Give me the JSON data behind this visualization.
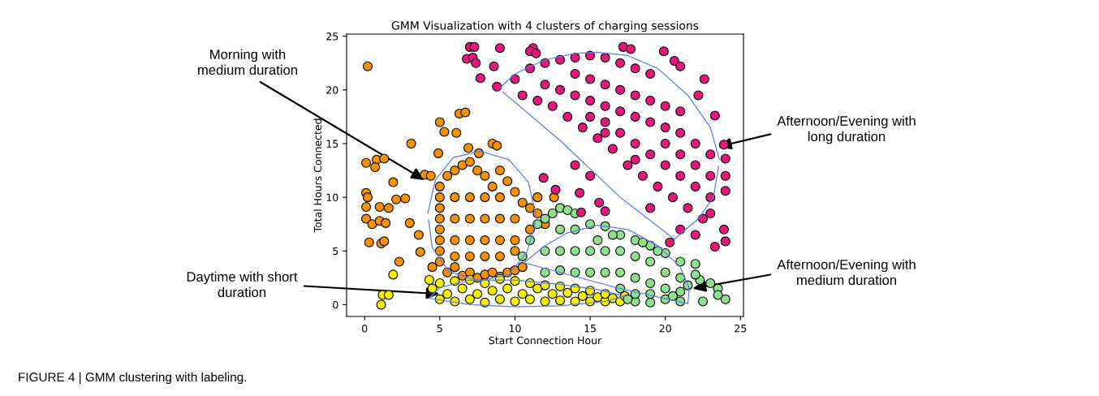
{
  "chart_data": {
    "type": "scatter",
    "title": "GMM Visualization with 4 clusters of charging sessions",
    "xlabel": "Start Connection Hour",
    "ylabel": "Total Hours Connected",
    "xlim": [
      -1.2,
      25.2
    ],
    "ylim": [
      -1.1,
      25.2
    ],
    "xticks": [
      0,
      5,
      10,
      15,
      20,
      25
    ],
    "yticks": [
      0,
      5,
      10,
      15,
      20,
      25
    ],
    "grid": false,
    "legend": false,
    "marker": "circle",
    "series": [
      {
        "color": "#f39200",
        "x": [
          0.2,
          0.1,
          0.8,
          1.3,
          0.7,
          0.1,
          0.2,
          1.9,
          0.1,
          1.0,
          1.6,
          2.7,
          2.1,
          0.1,
          0.5,
          1.0,
          1.4,
          0.3,
          1.1,
          1.3,
          3.0,
          3.6,
          3.7,
          2.3,
          3.1,
          5.0,
          5.3,
          6.1,
          6.3,
          6.7,
          4.9,
          8.5,
          8.8,
          6.9,
          7.6,
          4.0,
          4.4,
          4.5,
          5,
          5.5,
          6,
          6.5,
          7,
          7.5,
          8,
          8.5,
          9,
          9.5,
          10,
          10.5,
          11,
          11.5,
          5,
          5,
          5,
          5,
          5,
          5,
          5,
          5.5,
          6,
          6.5,
          7,
          7.5,
          8,
          8.5,
          9,
          9.5,
          10,
          10.5,
          6,
          7,
          8,
          9,
          6,
          7,
          8,
          9,
          10,
          6,
          7,
          8,
          9,
          10,
          6,
          7,
          8,
          9,
          10,
          11,
          12,
          12.6,
          11.5
        ],
        "values": [
          22.2,
          13.2,
          13.5,
          13.6,
          12.8,
          10.4,
          10.0,
          11.4,
          9.1,
          9.1,
          9.0,
          9.9,
          9.8,
          8.0,
          7.5,
          7.8,
          7.6,
          5.8,
          5.7,
          5.9,
          7.6,
          6.5,
          4.9,
          4.0,
          15.0,
          17.0,
          16.1,
          16.0,
          17.8,
          17.9,
          14.1,
          15.0,
          14.8,
          14.6,
          14.1,
          12.1,
          12.0,
          3.5,
          11,
          12,
          12.5,
          13,
          13.3,
          12.5,
          12,
          11,
          12.5,
          11.5,
          10.5,
          9.5,
          9,
          8.5,
          10,
          9,
          8,
          7,
          6,
          5,
          4,
          3,
          3.5,
          2.7,
          3,
          2.5,
          2.8,
          3,
          2.6,
          3,
          3.2,
          3.5,
          10,
          10,
          10,
          10,
          8,
          8,
          8,
          8,
          8,
          6,
          6,
          6,
          6,
          6,
          4.5,
          4.5,
          4.5,
          4.5,
          5,
          7,
          7.5,
          10,
          10
        ]
      },
      {
        "color": "#f2ee00",
        "x": [
          4.3,
          4.5,
          5,
          5,
          5.5,
          6,
          6,
          6.5,
          7,
          7,
          7.5,
          8,
          8,
          8.5,
          9,
          9,
          9.5,
          10,
          10,
          10.5,
          11,
          11,
          11.5,
          12,
          12,
          12.5,
          13,
          13,
          13.5,
          14,
          14,
          14.5,
          15,
          15,
          15.5,
          16,
          16,
          16.5,
          17,
          17.3,
          1.1,
          1.2,
          1.6,
          1.9
        ],
        "values": [
          2.3,
          1.5,
          0.5,
          2,
          1,
          0.3,
          2.2,
          1.5,
          0.5,
          2.3,
          1,
          0.2,
          2,
          1.3,
          0.5,
          2.4,
          1.5,
          0.3,
          2.2,
          1,
          0.5,
          2,
          1.5,
          0.3,
          1.8,
          1,
          0.4,
          1.7,
          1.1,
          0.3,
          1.5,
          0.8,
          0.3,
          1.3,
          0.7,
          0.3,
          1,
          0.6,
          0.3,
          0.8,
          0,
          0.9,
          0.9,
          2.8
        ]
      },
      {
        "color": "#8ee08e",
        "x": [
          10.5,
          11,
          11.5,
          12,
          12.5,
          13,
          13.5,
          14,
          13,
          14,
          15,
          16,
          17,
          18,
          19,
          20,
          21,
          22,
          22.3,
          23,
          23.5,
          24,
          23.5,
          22.5,
          21,
          20,
          19,
          18,
          17.5,
          12,
          13,
          14,
          15,
          16,
          17,
          18,
          19,
          20,
          21,
          12,
          13,
          14,
          15,
          16,
          17,
          18,
          19,
          20,
          21,
          17,
          18,
          19,
          20.5,
          21.5,
          18.5,
          16.5,
          15.5,
          19.5,
          22
        ],
        "values": [
          4.5,
          6,
          7.5,
          8,
          8.5,
          9,
          8.8,
          8.5,
          7,
          7,
          7.5,
          7.3,
          6.5,
          6,
          5.5,
          4.8,
          4,
          3.8,
          2.3,
          2,
          1.5,
          0.5,
          0.9,
          0.3,
          0.3,
          0.5,
          0.2,
          0.3,
          0.5,
          5,
          5,
          5,
          5,
          5,
          5,
          4.5,
          4,
          3,
          2.5,
          3,
          3.2,
          3,
          3,
          3,
          3,
          2.5,
          2,
          1.5,
          1.2,
          1.5,
          1,
          1,
          0.8,
          1.8,
          5.8,
          6.5,
          6,
          5,
          2.8
        ]
      },
      {
        "color": "#e6177a",
        "x": [
          7,
          7.3,
          6.8,
          7.2,
          7.4,
          7.7,
          9,
          8.6,
          8.8,
          11.2,
          11,
          11.4,
          17.2,
          17.7,
          19.9,
          20.6,
          21,
          22.6,
          23.3,
          22.2,
          11.9,
          12.7,
          14.3,
          14.4,
          15.6,
          16,
          20.3,
          23.3,
          24,
          23.9,
          24,
          24,
          24,
          23.9,
          14,
          15,
          10,
          11,
          12,
          13,
          14,
          15,
          16,
          17,
          18,
          19,
          10.5,
          11.5,
          12.5,
          13.5,
          14.5,
          15.5,
          16.5,
          17.5,
          18.5,
          19.5,
          20.5,
          21.5,
          22.5,
          12,
          13,
          14,
          15,
          16,
          17,
          18,
          19,
          20,
          21,
          22,
          23,
          14,
          15,
          16,
          17,
          18,
          19,
          20,
          21,
          15,
          16,
          17,
          18,
          19,
          20,
          21,
          22,
          23,
          23,
          22,
          20,
          21,
          19,
          21,
          22,
          23,
          16,
          18
        ],
        "values": [
          24,
          24,
          22.9,
          23,
          22.5,
          21.1,
          23.9,
          22.2,
          20.3,
          23.9,
          23.6,
          23.4,
          24,
          23.8,
          23.6,
          22.7,
          22.2,
          21,
          17.6,
          19.5,
          11.8,
          10.7,
          10.4,
          8.6,
          9.5,
          8.7,
          5.8,
          5.4,
          5.9,
          7,
          10.6,
          12,
          13.6,
          14.9,
          13,
          12,
          21,
          22,
          22.5,
          22.8,
          23,
          23.2,
          23,
          22.5,
          22,
          21.5,
          19.5,
          19,
          18.5,
          17.5,
          16.5,
          15.5,
          14.5,
          13,
          12,
          11,
          10,
          9,
          8,
          20.5,
          20,
          19.5,
          19,
          18.5,
          18,
          17.5,
          17,
          16.5,
          16,
          15,
          14,
          21.5,
          21,
          20.5,
          20,
          19.5,
          19,
          18.5,
          18,
          17.5,
          17,
          16,
          15,
          14,
          13,
          12,
          11,
          10,
          12,
          13,
          15,
          14,
          9,
          7,
          6.5,
          8.5,
          16,
          13.5
        ]
      },
      {
        "type": "line",
        "marker": "none",
        "color": "#5b7bf5",
        "x": [
          4.2,
          4.7,
          5.9,
          7.7,
          9.6,
          10.9,
          11.4
        ],
        "values": [
          8.5,
          11.6,
          13.7,
          14.3,
          13.5,
          11.4,
          8.2
        ]
      },
      {
        "type": "line",
        "marker": "none",
        "color": "#5b7bf5",
        "x": [
          4.25,
          4.5,
          5.6,
          7.6,
          9.6,
          10.8,
          11.35
        ],
        "values": [
          7.9,
          5.3,
          3.1,
          2.2,
          2.8,
          4.9,
          7.6
        ]
      },
      {
        "type": "line",
        "marker": "none",
        "color": "#5b7bf5",
        "x": [
          4.3,
          5,
          7,
          10,
          13,
          15.5,
          17.3
        ],
        "values": [
          0.6,
          1.6,
          2.3,
          2.3,
          1.9,
          1.4,
          0.8
        ]
      },
      {
        "type": "line",
        "marker": "none",
        "color": "#5b7bf5",
        "x": [
          4.3,
          7,
          10,
          13,
          16,
          17.3
        ],
        "values": [
          0.6,
          0,
          -0.2,
          -0.1,
          0.3,
          0.8
        ]
      },
      {
        "type": "line",
        "marker": "none",
        "color": "#5b7bf5",
        "x": [
          9,
          10,
          12,
          14,
          15.5,
          17.5,
          19.5,
          21.5,
          23,
          23.6
        ],
        "values": [
          20.2,
          21.5,
          22.8,
          23.4,
          23.5,
          23.2,
          22,
          19.5,
          16.5,
          13.5
        ]
      },
      {
        "type": "line",
        "marker": "none",
        "color": "#5b7bf5",
        "x": [
          9.2,
          13,
          17,
          20.6,
          22.2,
          23.2,
          23.55
        ],
        "values": [
          19.8,
          15.3,
          10,
          6.1,
          8,
          10,
          12.9
        ]
      },
      {
        "type": "line",
        "marker": "none",
        "color": "#5b7bf5",
        "x": [
          10.6,
          12,
          13.5,
          15.5,
          17.5,
          19.5,
          21,
          21.6
        ],
        "values": [
          3.9,
          5.5,
          6.7,
          7.4,
          7,
          5.5,
          3.5,
          1.5
        ]
      },
      {
        "type": "line",
        "marker": "none",
        "color": "#5b7bf5",
        "x": [
          10.6,
          13,
          17,
          21.5,
          21.6
        ],
        "values": [
          3.9,
          3,
          1.5,
          0.1,
          1.5
        ]
      }
    ],
    "annotations": [
      {
        "text": "Morning with\nmedium duration",
        "x": 4.0,
        "y": 11.6
      },
      {
        "text": "Afternoon/Evening with\nlong duration",
        "x": 23.5,
        "y": 14.7
      },
      {
        "text": "Daytime with short\nduration",
        "x": 5.0,
        "y": 1.0
      },
      {
        "text": "Afternoon/Evening with\nmedium duration",
        "x": 21.8,
        "y": 1.5
      },
      "FIGURE 4 | GMM clustering with labeling."
    ]
  }
}
